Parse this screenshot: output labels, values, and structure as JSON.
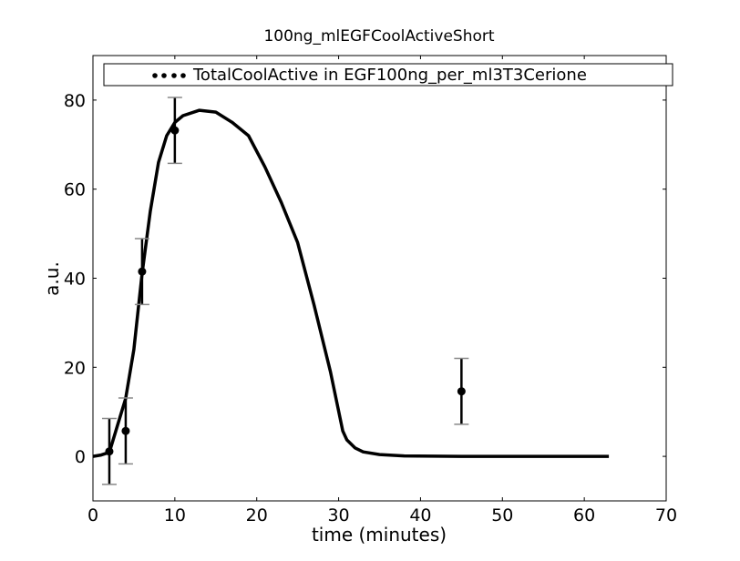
{
  "chart_data": {
    "type": "line",
    "title": "100ng_mlEGFCoolActiveShort",
    "xlabel": "time (minutes)",
    "ylabel": "a.u.",
    "xlim": [
      0,
      70
    ],
    "ylim": [
      -10,
      90
    ],
    "xticks": [
      0,
      10,
      20,
      30,
      40,
      50,
      60,
      70
    ],
    "yticks": [
      0,
      20,
      40,
      60,
      80
    ],
    "grid": false,
    "legend": {
      "placement": "top",
      "entries": [
        "TotalCoolActive in EGF100ng_per_ml3T3Cerione"
      ]
    },
    "series": [
      {
        "type": "line",
        "color": "#000000",
        "x": [
          0,
          1,
          2,
          3,
          4,
          5,
          6,
          7,
          8,
          9,
          10,
          11,
          13,
          15,
          17,
          19,
          21,
          23,
          25,
          27,
          29,
          30.5,
          31,
          32,
          33,
          35,
          38,
          45,
          55,
          63
        ],
        "y": [
          0,
          0.3,
          0.9,
          7,
          13,
          24,
          41,
          55,
          66,
          72,
          75,
          76.5,
          77.7,
          77.3,
          75,
          72,
          65,
          57,
          48,
          34,
          19,
          5.7,
          3.7,
          1.9,
          1.0,
          0.4,
          0.1,
          0,
          0,
          0
        ]
      },
      {
        "name": "TotalCoolActive in EGF100ng_per_ml3T3Cerione",
        "type": "scatter",
        "color": "#000000",
        "x": [
          2,
          4,
          6,
          10,
          45
        ],
        "y": [
          1.1,
          5.7,
          41.5,
          73.2,
          14.6
        ],
        "yerr": [
          7.4,
          7.4,
          7.4,
          7.4,
          7.4
        ]
      }
    ]
  }
}
